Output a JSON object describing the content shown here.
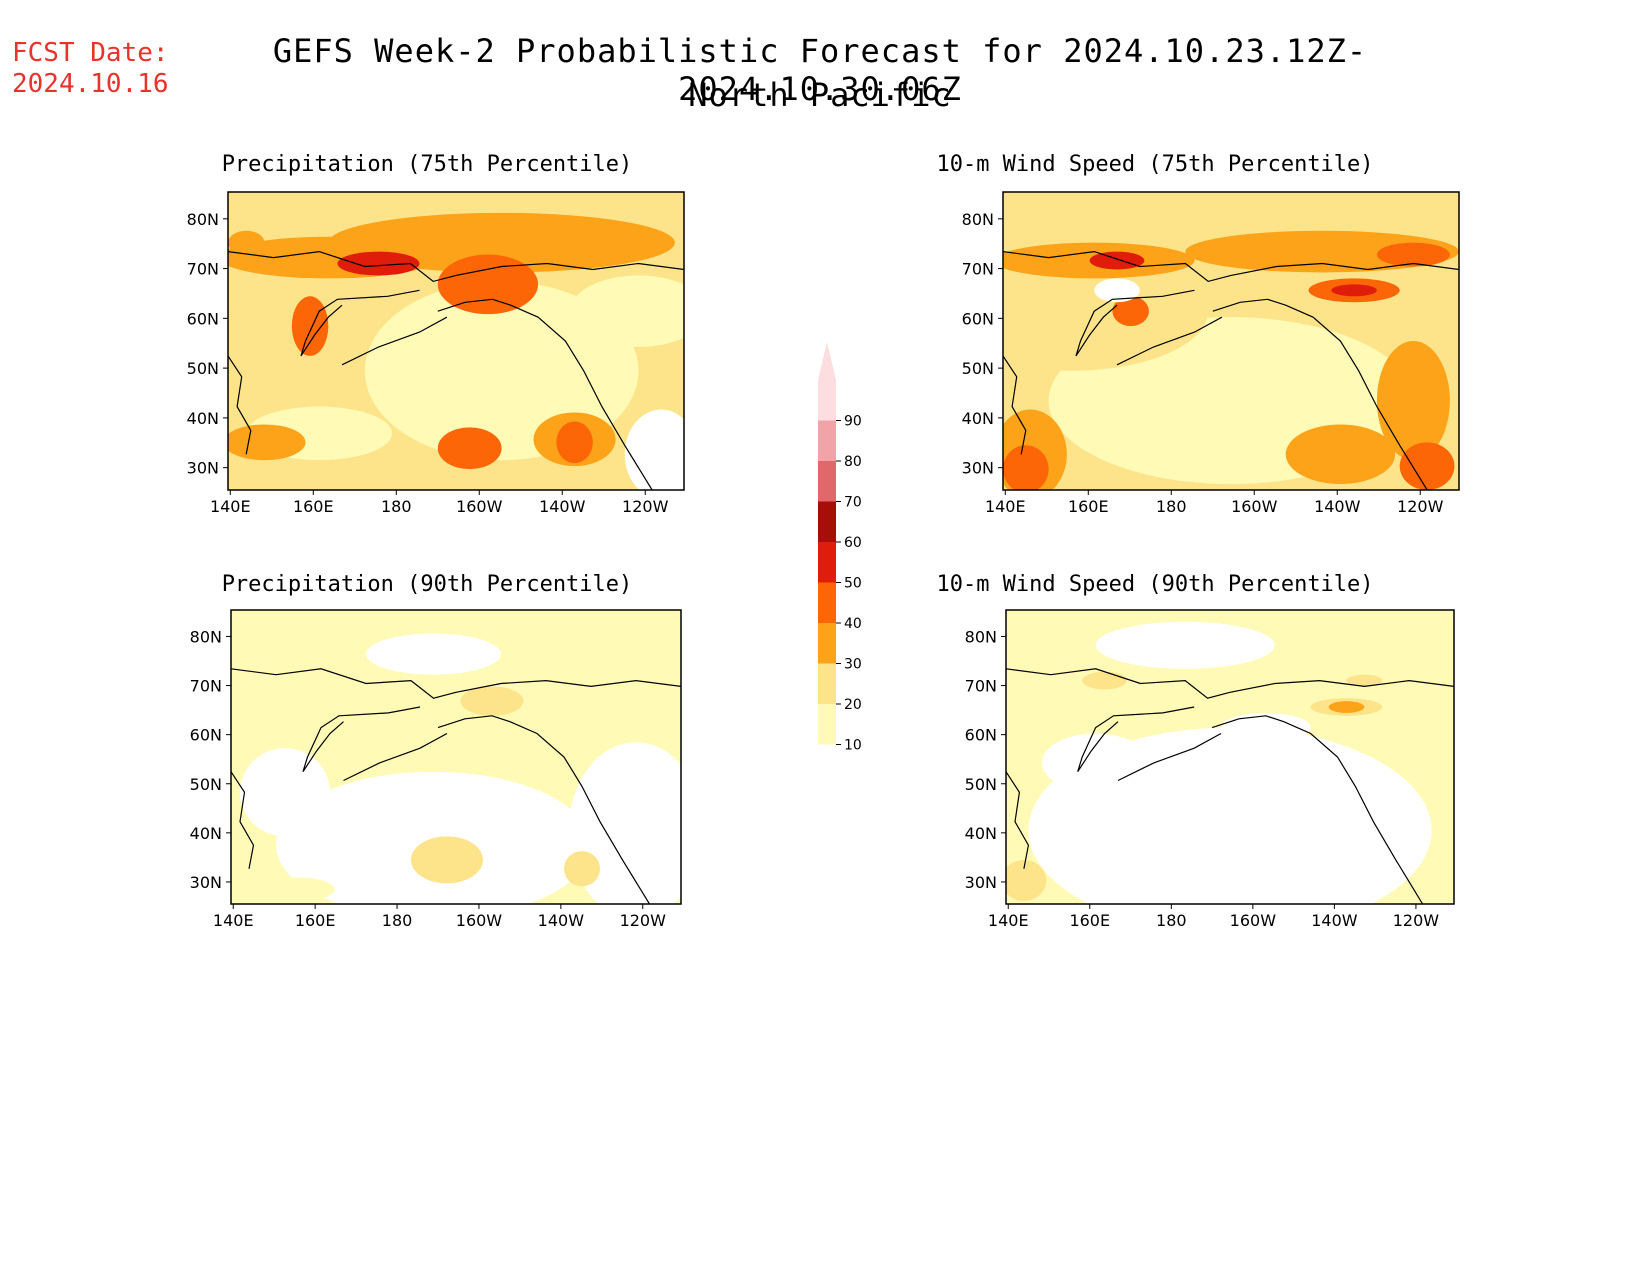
{
  "header": {
    "fcst_label": "FCST Date:",
    "fcst_date": "2024.10.16",
    "title": "GEFS Week-2 Probabilistic Forecast for 2024.10.23.12Z-2024.10.30.06Z",
    "subtitle": "North Pacific"
  },
  "panels": [
    {
      "title": "Precipitation (75th Percentile)"
    },
    {
      "title": "10-m Wind Speed (75th Percentile)"
    },
    {
      "title": "Precipitation (90th Percentile)"
    },
    {
      "title": "10-m Wind Speed (90th Percentile)"
    }
  ],
  "axes": {
    "lon_labels": [
      "140E",
      "160E",
      "180",
      "160W",
      "140W",
      "120W"
    ],
    "lat_labels": [
      "80N",
      "70N",
      "60N",
      "50N",
      "40N",
      "30N"
    ]
  },
  "colorbar": {
    "levels": [
      "10",
      "20",
      "30",
      "40",
      "50",
      "60",
      "70",
      "80",
      "90"
    ],
    "colors": [
      "#fffab6",
      "#fde48a",
      "#fda31a",
      "#fc6606",
      "#e01c0a",
      "#a50f05",
      "#e0686a",
      "#f2a3a8",
      "#fddde0"
    ]
  }
}
